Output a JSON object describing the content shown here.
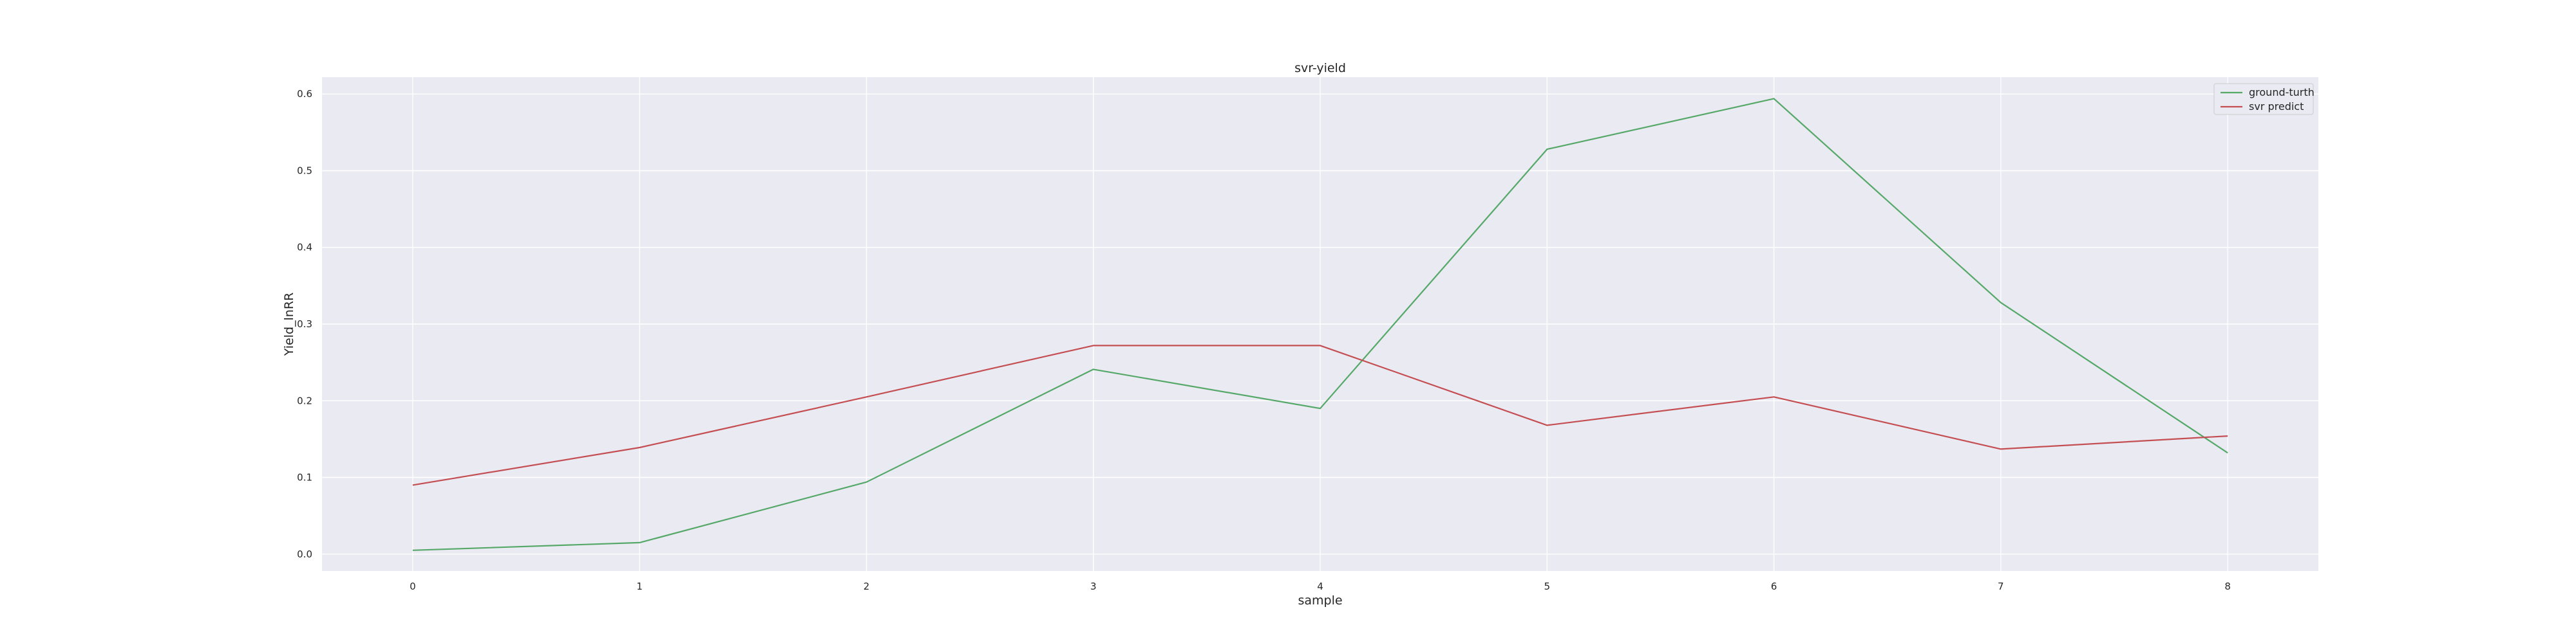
{
  "chart_data": {
    "type": "line",
    "title": "svr-yield",
    "xlabel": "sample",
    "ylabel": "Yield_lnRR",
    "x": [
      0,
      1,
      2,
      3,
      4,
      5,
      6,
      7,
      8
    ],
    "xlim": [
      -0.4,
      8.4
    ],
    "ylim": [
      -0.022,
      0.622
    ],
    "xticks": [
      "0",
      "1",
      "2",
      "3",
      "4",
      "5",
      "6",
      "7",
      "8"
    ],
    "yticks": [
      "0.0",
      "0.1",
      "0.2",
      "0.3",
      "0.4",
      "0.5",
      "0.6"
    ],
    "grid": true,
    "legend_position": "top-right",
    "series": [
      {
        "name": "ground-turth",
        "color": "#55a868",
        "values": [
          0.005,
          0.015,
          0.094,
          0.241,
          0.19,
          0.528,
          0.594,
          0.328,
          0.132
        ]
      },
      {
        "name": "svr predict",
        "color": "#c44e52",
        "values": [
          0.09,
          0.139,
          0.205,
          0.272,
          0.272,
          0.168,
          0.205,
          0.137,
          0.154
        ]
      }
    ],
    "background": "#eaeaf2",
    "gridcolor": "#ffffff"
  }
}
